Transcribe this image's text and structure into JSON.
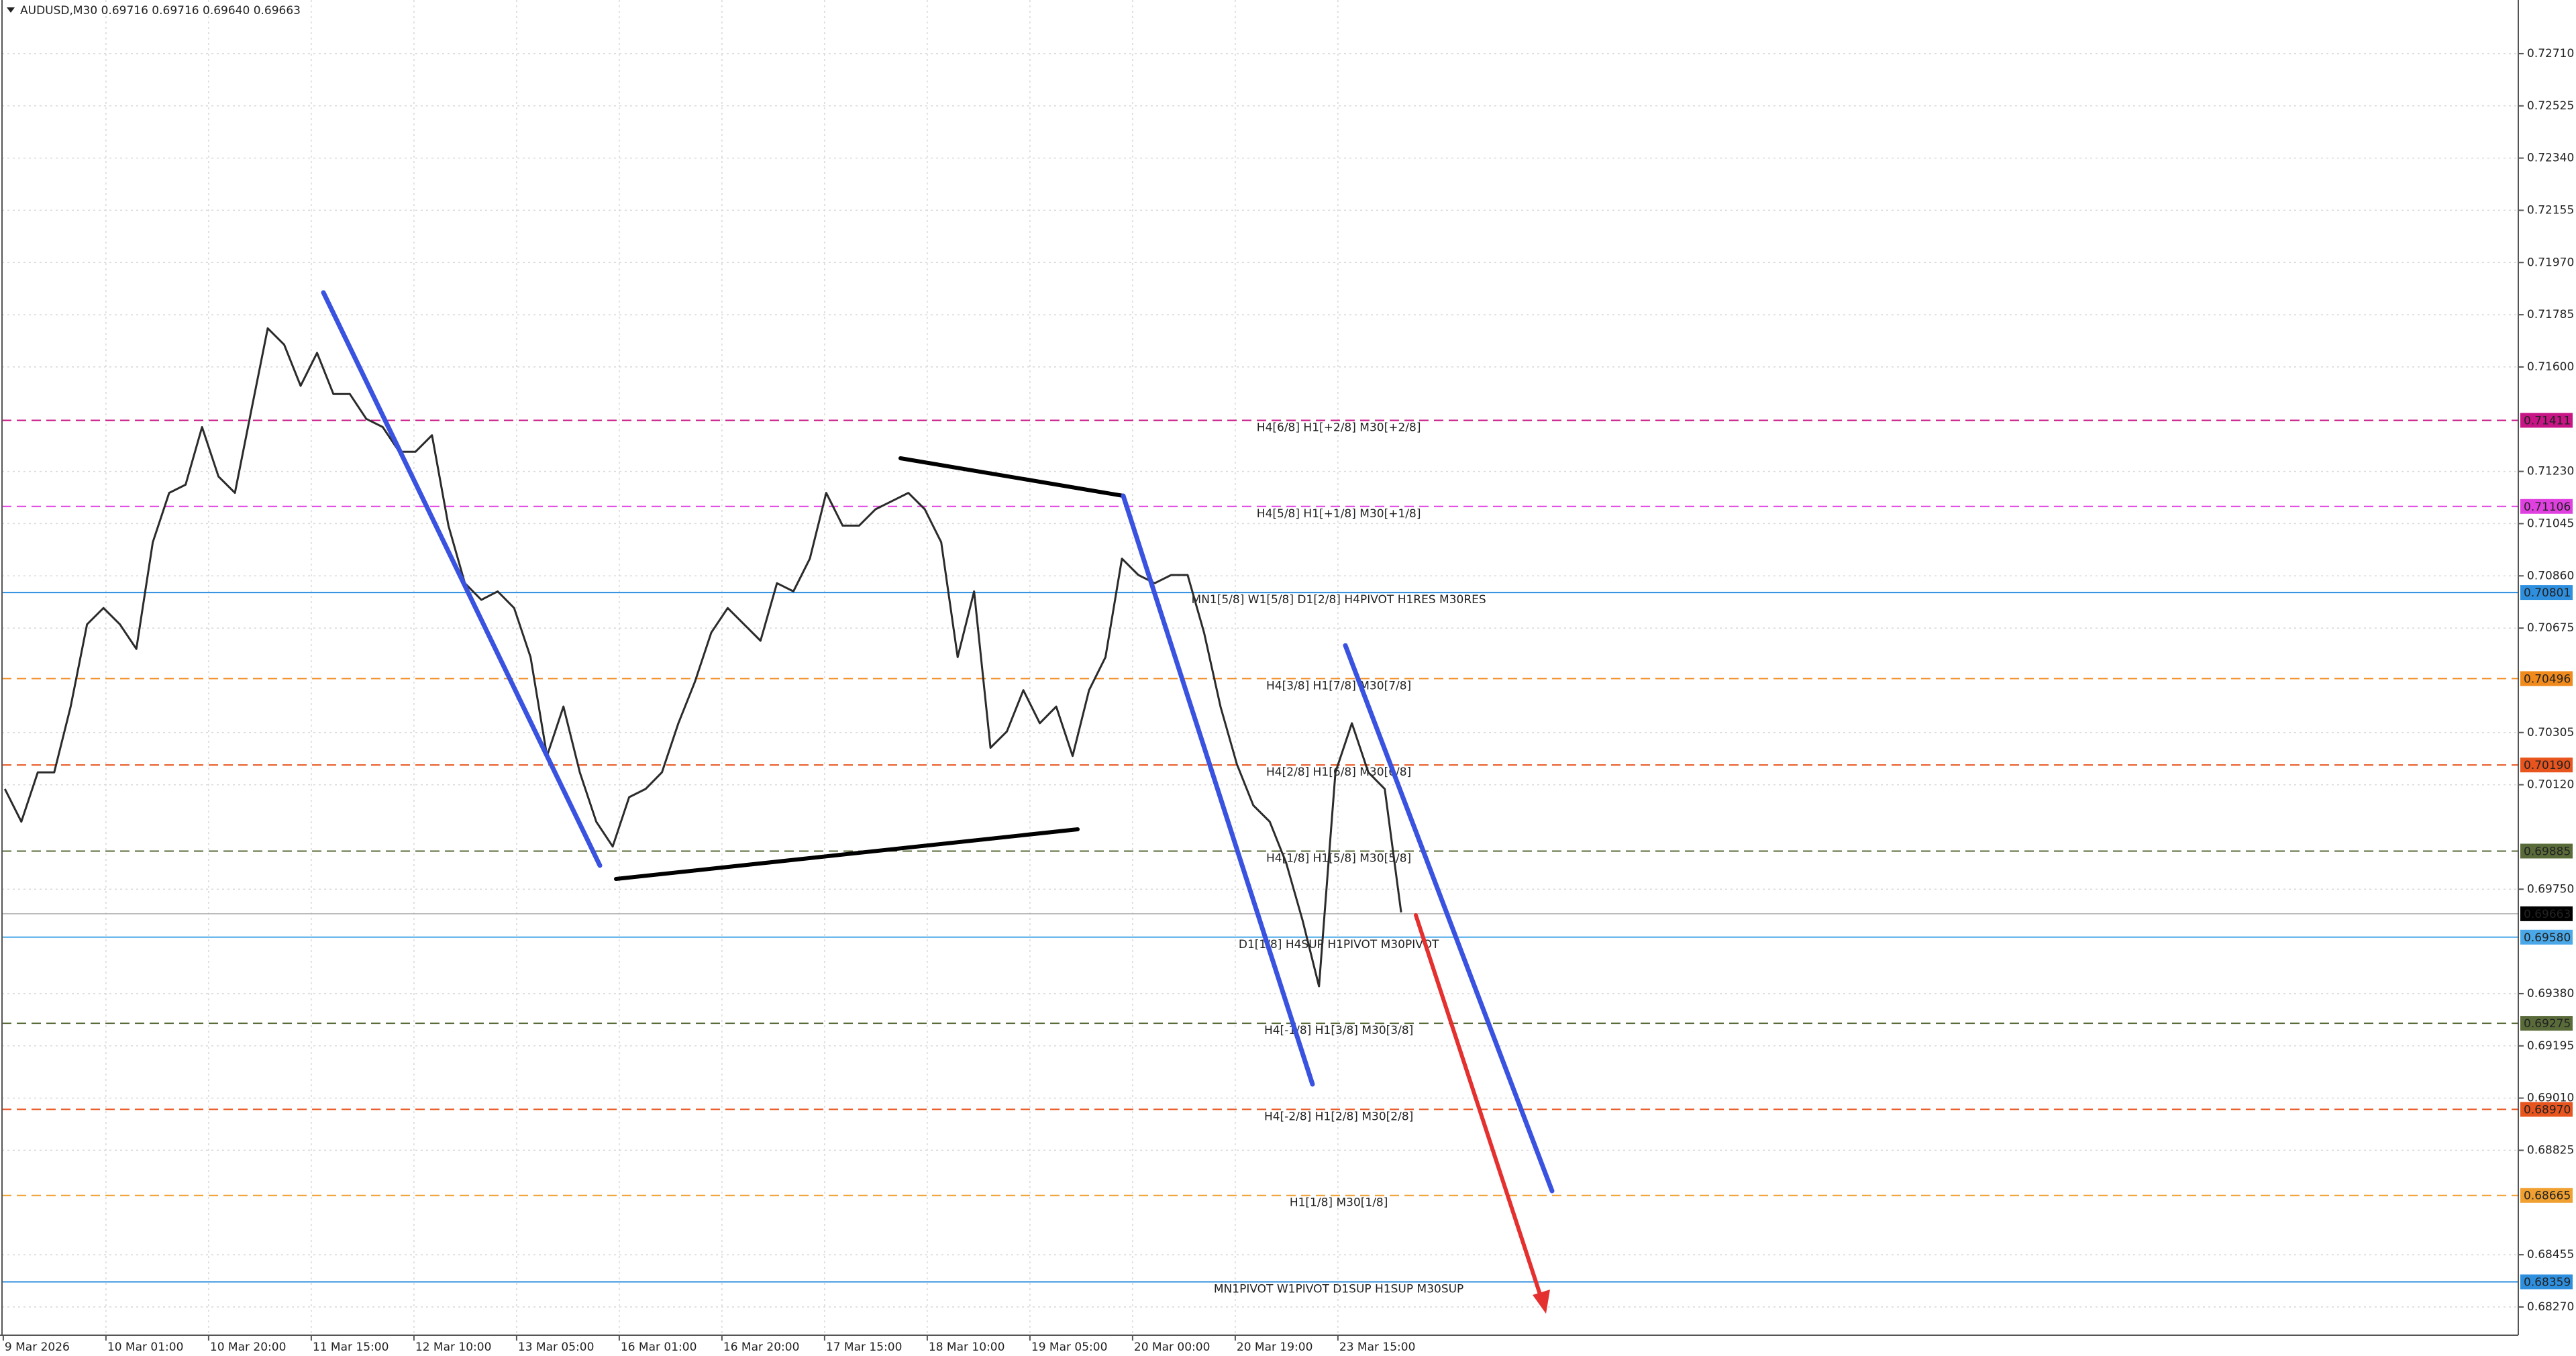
{
  "chart_data": {
    "type": "line",
    "title": "AUDUSD,M30  0.69716 0.69716 0.69640 0.69663",
    "color": "#2b2b2b",
    "values": [
      0.70105,
      0.69989,
      0.70164,
      0.70164,
      0.70397,
      0.70688,
      0.70746,
      0.70688,
      0.70601,
      0.70979,
      0.71154,
      0.71183,
      0.71387,
      0.71212,
      0.71154,
      0.71446,
      0.71737,
      0.71679,
      0.71533,
      0.7165,
      0.71504,
      0.71504,
      0.71416,
      0.71387,
      0.713,
      0.713,
      0.71358,
      0.71038,
      0.70834,
      0.70775,
      0.70805,
      0.70746,
      0.70572,
      0.70222,
      0.70397,
      0.70164,
      0.69989,
      0.69901,
      0.70076,
      0.70105,
      0.70164,
      0.70338,
      0.70484,
      0.70659,
      0.70746,
      0.70688,
      0.7063,
      0.70834,
      0.70805,
      0.70921,
      0.71154,
      0.71038,
      0.71038,
      0.71096,
      0.71125,
      0.71154,
      0.71096,
      0.70979,
      0.70572,
      0.70805,
      0.70251,
      0.70309,
      0.70455,
      0.70338,
      0.70397,
      0.70222,
      0.70455,
      0.70572,
      0.70921,
      0.70863,
      0.70834,
      0.70863,
      0.70863,
      0.70659,
      0.70397,
      0.70193,
      0.70047,
      0.69989,
      0.69843,
      0.69639,
      0.69406,
      0.70164,
      0.70338,
      0.70164,
      0.70105,
      0.69668
    ],
    "xtick_labels": [
      "9 Mar 2026",
      "10 Mar 01:00",
      "10 Mar 20:00",
      "11 Mar 15:00",
      "12 Mar 10:00",
      "13 Mar 05:00",
      "16 Mar 01:00",
      "16 Mar 20:00",
      "17 Mar 15:00",
      "18 Mar 10:00",
      "19 Mar 05:00",
      "20 Mar 00:00",
      "20 Mar 19:00",
      "23 Mar 15:00"
    ],
    "ylim": [
      0.6817,
      0.729
    ],
    "yticks": [
      {
        "value": 0.7271,
        "label": "0.72710"
      },
      {
        "value": 0.72525,
        "label": "0.72525"
      },
      {
        "value": 0.7234,
        "label": "0.72340"
      },
      {
        "value": 0.72155,
        "label": "0.72155"
      },
      {
        "value": 0.7197,
        "label": "0.71970"
      },
      {
        "value": 0.71785,
        "label": "0.71785"
      },
      {
        "value": 0.716,
        "label": "0.71600"
      },
      {
        "value": 0.7123,
        "label": "0.71230"
      },
      {
        "value": 0.71045,
        "label": "0.71045"
      },
      {
        "value": 0.7086,
        "label": "0.70860"
      },
      {
        "value": 0.70675,
        "label": "0.70675"
      },
      {
        "value": 0.70305,
        "label": "0.70305"
      },
      {
        "value": 0.7012,
        "label": "0.70120"
      },
      {
        "value": 0.6975,
        "label": "0.69750"
      },
      {
        "value": 0.6938,
        "label": "0.69380"
      },
      {
        "value": 0.69195,
        "label": "0.69195"
      },
      {
        "value": 0.6901,
        "label": "0.69010"
      },
      {
        "value": 0.68825,
        "label": "0.68825"
      },
      {
        "value": 0.68455,
        "label": "0.68455"
      },
      {
        "value": 0.6827,
        "label": "0.68270"
      }
    ],
    "grid": true,
    "levels": [
      {
        "value": 0.71411,
        "value_label": "0.71411",
        "text": "H4[6/8] H1[+2/8] M30[+2/8]",
        "color": "#c71585",
        "dashed": true
      },
      {
        "value": 0.71106,
        "value_label": "0.71106",
        "text": "H4[5/8] H1[+1/8] M30[+1/8]",
        "color": "#e040e0",
        "dashed": true
      },
      {
        "value": 0.70801,
        "value_label": "0.70801",
        "text": "MN1[5/8] W1[5/8] D1[2/8] H4PIVOT H1RES M30RES",
        "color": "#2e8fdf",
        "dashed": false
      },
      {
        "value": 0.70496,
        "value_label": "0.70496",
        "text": "H4[3/8] H1[7/8] M30[7/8]",
        "color": "#f08a1c",
        "dashed": true
      },
      {
        "value": 0.7019,
        "value_label": "0.70190",
        "text": "H4[2/8] H1[6/8] M30[6/8]",
        "color": "#e8541e",
        "dashed": true
      },
      {
        "value": 0.69885,
        "value_label": "0.69885",
        "text": "H4[1/8] H1[5/8] M30[5/8]",
        "color": "#5a6b3a",
        "dashed": true
      },
      {
        "value": 0.6958,
        "value_label": "0.69580",
        "text": "D1[1/8] H4SUP H1PIVOT M30PIVOT",
        "color": "#4aa8e8",
        "dashed": false
      },
      {
        "value": 0.69275,
        "value_label": "0.69275",
        "text": "H4[-1/8] H1[3/8] M30[3/8]",
        "color": "#5a6b3a",
        "dashed": true
      },
      {
        "value": 0.6897,
        "value_label": "0.68970",
        "text": "H4[-2/8] H1[2/8] M30[2/8]",
        "color": "#e8541e",
        "dashed": true
      },
      {
        "value": 0.68665,
        "value_label": "0.68665",
        "text": "H1[1/8] M30[1/8]",
        "color": "#f0a030",
        "dashed": true
      },
      {
        "value": 0.68359,
        "value_label": "0.68359",
        "text": "MN1PIVOT W1PIVOT D1SUP H1SUP M30SUP",
        "color": "#2e8fdf",
        "dashed": false
      }
    ],
    "last": {
      "value": 0.69663,
      "value_label": "0.69663",
      "color": "#000000"
    }
  }
}
